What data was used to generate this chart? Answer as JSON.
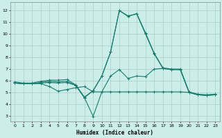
{
  "title": "",
  "xlabel": "Humidex (Indice chaleur)",
  "bg_color": "#cceee8",
  "grid_color": "#aacccc",
  "line_color": "#1a7a6e",
  "xlim": [
    -0.5,
    23.5
  ],
  "ylim": [
    2.5,
    12.7
  ],
  "xticks": [
    0,
    1,
    2,
    3,
    4,
    5,
    6,
    7,
    8,
    9,
    10,
    11,
    12,
    13,
    14,
    15,
    16,
    17,
    18,
    19,
    20,
    21,
    22,
    23
  ],
  "yticks": [
    3,
    4,
    5,
    6,
    7,
    8,
    9,
    10,
    11,
    12
  ],
  "line1_x": [
    0,
    1,
    2,
    3,
    4,
    5,
    6,
    7,
    8,
    9,
    10,
    11,
    12,
    13,
    14,
    15,
    16,
    17,
    18,
    19,
    20,
    21,
    22,
    23
  ],
  "line1_y": [
    5.8,
    5.75,
    5.75,
    5.75,
    5.5,
    5.1,
    5.25,
    5.4,
    5.5,
    5.05,
    5.05,
    5.05,
    5.05,
    5.05,
    5.05,
    5.05,
    5.05,
    5.05,
    5.05,
    5.05,
    5.0,
    4.8,
    4.75,
    4.8
  ],
  "line2_x": [
    0,
    1,
    2,
    3,
    4,
    5,
    6,
    7,
    8,
    9,
    10,
    11,
    12,
    13,
    14,
    15,
    16,
    17,
    18,
    19,
    20,
    21,
    22,
    23
  ],
  "line2_y": [
    5.8,
    5.75,
    5.75,
    5.8,
    5.85,
    5.8,
    5.85,
    5.6,
    4.55,
    2.95,
    5.05,
    6.4,
    6.95,
    6.2,
    6.4,
    6.35,
    7.0,
    7.05,
    6.95,
    6.95,
    5.0,
    4.8,
    4.75,
    4.8
  ],
  "line3_x": [
    0,
    1,
    2,
    3,
    4,
    5,
    6,
    7,
    8,
    9,
    10,
    11,
    12,
    13,
    14,
    15,
    16,
    17,
    18,
    19,
    20,
    21,
    22,
    23
  ],
  "line3_y": [
    5.8,
    5.75,
    5.75,
    5.85,
    5.95,
    5.9,
    5.95,
    5.6,
    4.55,
    5.15,
    6.4,
    8.45,
    12.0,
    11.55,
    11.7,
    10.0,
    8.3,
    7.05,
    6.95,
    6.95,
    5.0,
    4.8,
    4.75,
    4.8
  ],
  "line4_x": [
    0,
    1,
    2,
    3,
    4,
    5,
    6,
    7,
    8,
    9,
    10,
    11,
    12,
    13,
    14,
    15,
    16,
    17,
    18,
    19,
    20,
    21,
    22,
    23
  ],
  "line4_y": [
    5.9,
    5.8,
    5.8,
    5.95,
    6.05,
    6.05,
    6.1,
    5.65,
    4.6,
    5.15,
    6.4,
    8.45,
    12.0,
    11.5,
    11.75,
    10.1,
    8.35,
    7.1,
    7.0,
    7.0,
    5.05,
    4.85,
    4.8,
    4.85
  ]
}
